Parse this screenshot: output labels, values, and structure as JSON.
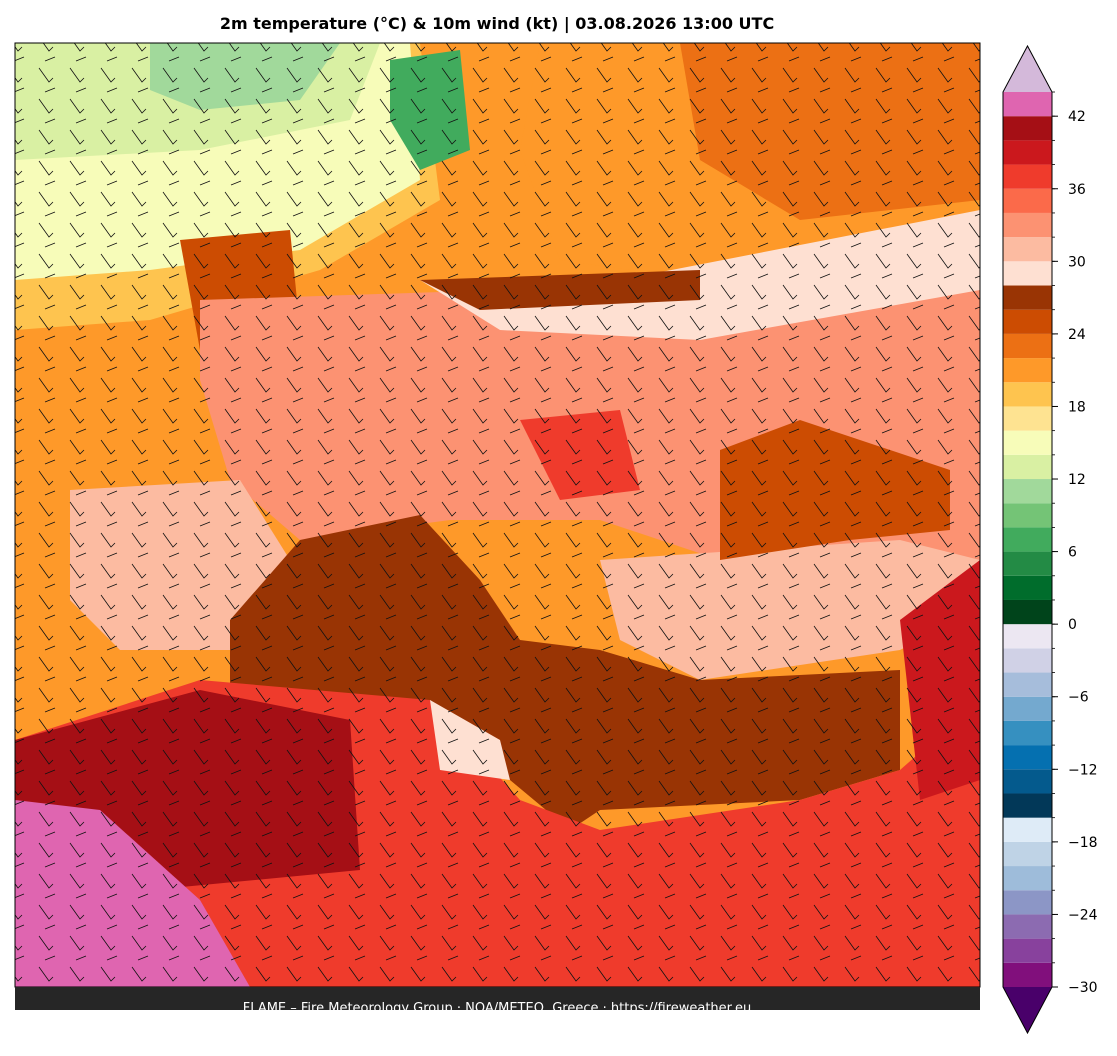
{
  "header": {
    "title": "2m temperature (°C) & 10m wind (kt)  |  03.08.2026 13:00 UTC"
  },
  "colorbar": {
    "levels": [
      -30,
      -28,
      -26,
      -24,
      -22,
      -20,
      -18,
      -16,
      -14,
      -12,
      -10,
      -8,
      -6,
      -4,
      -2,
      0,
      2,
      4,
      6,
      8,
      10,
      12,
      14,
      16,
      18,
      20,
      22,
      24,
      26,
      28,
      30,
      32,
      34,
      36,
      38,
      40,
      42,
      44
    ],
    "colors": [
      "#810f7c",
      "#88419d",
      "#8c6bb1",
      "#8c96c6",
      "#9ebcda",
      "#bfd3e6",
      "#deebf7",
      "#023858",
      "#045a8d",
      "#0570b0",
      "#3690c0",
      "#74a9cf",
      "#a6bddb",
      "#d0d1e6",
      "#ece7f2",
      "#00441b",
      "#006d2c",
      "#238b45",
      "#41ab5d",
      "#74c476",
      "#a1d99b",
      "#d9f0a3",
      "#f7fcb9",
      "#fee391",
      "#fec44f",
      "#fe9929",
      "#ec7014",
      "#cc4c02",
      "#993404",
      "#fee0d2",
      "#fcbba1",
      "#fc9272",
      "#fb6a4a",
      "#ef3b2c",
      "#cb181d",
      "#a50f15",
      "#df65b0"
    ],
    "extend_colors": [
      "#49006a",
      "#d4b9da"
    ],
    "ticks": [
      {
        "value": -30,
        "label": "−30"
      },
      {
        "value": -24,
        "label": "−24"
      },
      {
        "value": -18,
        "label": "−18"
      },
      {
        "value": -12,
        "label": "−12"
      },
      {
        "value": -6,
        "label": "−6"
      },
      0,
      6,
      12,
      18,
      24,
      30,
      36,
      42
    ]
  },
  "footer": {
    "text": "FLAME – Fire Meteorology Group · NOA/METEO, Greece · https://fireweather.eu"
  }
}
